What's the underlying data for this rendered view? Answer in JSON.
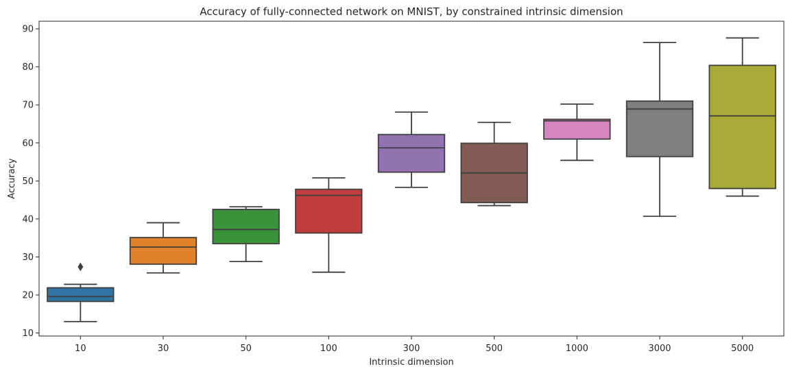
{
  "chart_data": {
    "type": "box",
    "title": "Accuracy of fully-connected network on MNIST, by constrained intrinsic dimension",
    "xlabel": "Intrinsic dimension",
    "ylabel": "Accuracy",
    "ylim": [
      9.2,
      92
    ],
    "yticks": [
      "10",
      "20",
      "30",
      "40",
      "50",
      "60",
      "70",
      "80",
      "90"
    ],
    "categories": [
      "10",
      "30",
      "50",
      "100",
      "300",
      "500",
      "1000",
      "3000",
      "5000"
    ],
    "boxes": [
      {
        "category": "10",
        "whisker_low": 13.0,
        "q1": 18.3,
        "median": 19.6,
        "q3": 21.9,
        "whisker_high": 22.8,
        "outliers": [
          27.4
        ],
        "color": "#3274a1"
      },
      {
        "category": "30",
        "whisker_low": 25.8,
        "q1": 28.1,
        "median": 32.6,
        "q3": 35.1,
        "whisker_high": 39.0,
        "outliers": [],
        "color": "#e1812c"
      },
      {
        "category": "50",
        "whisker_low": 28.8,
        "q1": 33.5,
        "median": 37.2,
        "q3": 42.5,
        "whisker_high": 43.2,
        "outliers": [],
        "color": "#3a923a"
      },
      {
        "category": "100",
        "whisker_low": 26.0,
        "q1": 36.3,
        "median": 46.2,
        "q3": 47.8,
        "whisker_high": 50.8,
        "outliers": [],
        "color": "#c03d3e"
      },
      {
        "category": "300",
        "whisker_low": 48.3,
        "q1": 52.3,
        "median": 58.7,
        "q3": 62.2,
        "whisker_high": 68.1,
        "outliers": [],
        "color": "#9372b2"
      },
      {
        "category": "500",
        "whisker_low": 43.5,
        "q1": 44.3,
        "median": 52.1,
        "q3": 59.9,
        "whisker_high": 65.4,
        "outliers": [],
        "color": "#845b53"
      },
      {
        "category": "1000",
        "whisker_low": 55.4,
        "q1": 61.0,
        "median": 65.8,
        "q3": 66.2,
        "whisker_high": 70.2,
        "outliers": [],
        "color": "#d684bd"
      },
      {
        "category": "3000",
        "whisker_low": 40.7,
        "q1": 56.4,
        "median": 68.9,
        "q3": 71.0,
        "whisker_high": 86.4,
        "outliers": [],
        "color": "#7f7f7f"
      },
      {
        "category": "5000",
        "whisker_low": 46.0,
        "q1": 48.0,
        "median": 67.1,
        "q3": 80.4,
        "whisker_high": 87.6,
        "outliers": [],
        "color": "#a9aa35"
      }
    ],
    "grid": false,
    "legend": "none"
  }
}
